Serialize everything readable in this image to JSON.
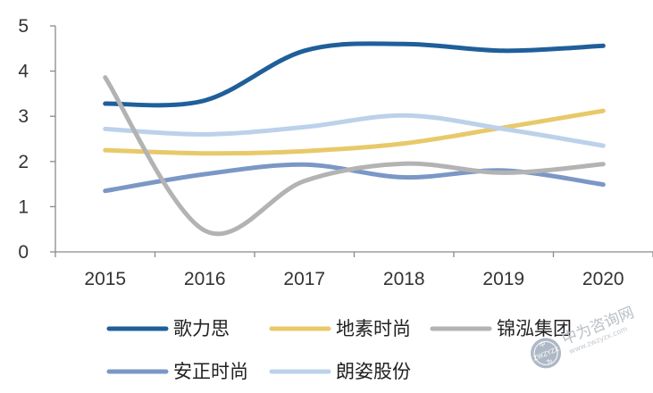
{
  "chart_data": {
    "type": "line",
    "x": [
      "2015",
      "2016",
      "2017",
      "2018",
      "2019",
      "2020"
    ],
    "ylim": [
      0,
      5
    ],
    "yticks": [
      0,
      1,
      2,
      3,
      4,
      5
    ],
    "grid": false,
    "smooth": true,
    "legend_position": "bottom",
    "series": [
      {
        "name": "歌力思",
        "color": "#1f5f9a",
        "values": [
          3.28,
          3.35,
          4.45,
          4.6,
          4.45,
          4.56
        ]
      },
      {
        "name": "地素时尚",
        "color": "#e8c96a",
        "values": [
          2.25,
          2.18,
          2.23,
          2.4,
          2.75,
          3.12
        ]
      },
      {
        "name": "锦泓集团",
        "color": "#b3b3b3",
        "values": [
          3.86,
          0.47,
          1.57,
          1.95,
          1.75,
          1.94
        ]
      },
      {
        "name": "安正时尚",
        "color": "#7b97c6",
        "values": [
          1.35,
          1.72,
          1.93,
          1.65,
          1.8,
          1.49
        ]
      },
      {
        "name": "朗姿股份",
        "color": "#bcd1ea",
        "values": [
          2.72,
          2.6,
          2.76,
          3.02,
          2.72,
          2.35
        ]
      }
    ]
  },
  "watermark": {
    "text": "中为咨询网",
    "url": "www.zwzyzx.com",
    "badge_top": "中",
    "badge_mid": "ZWZYZX",
    "badge_bottom": "为",
    "color": "#b9bfc7"
  }
}
